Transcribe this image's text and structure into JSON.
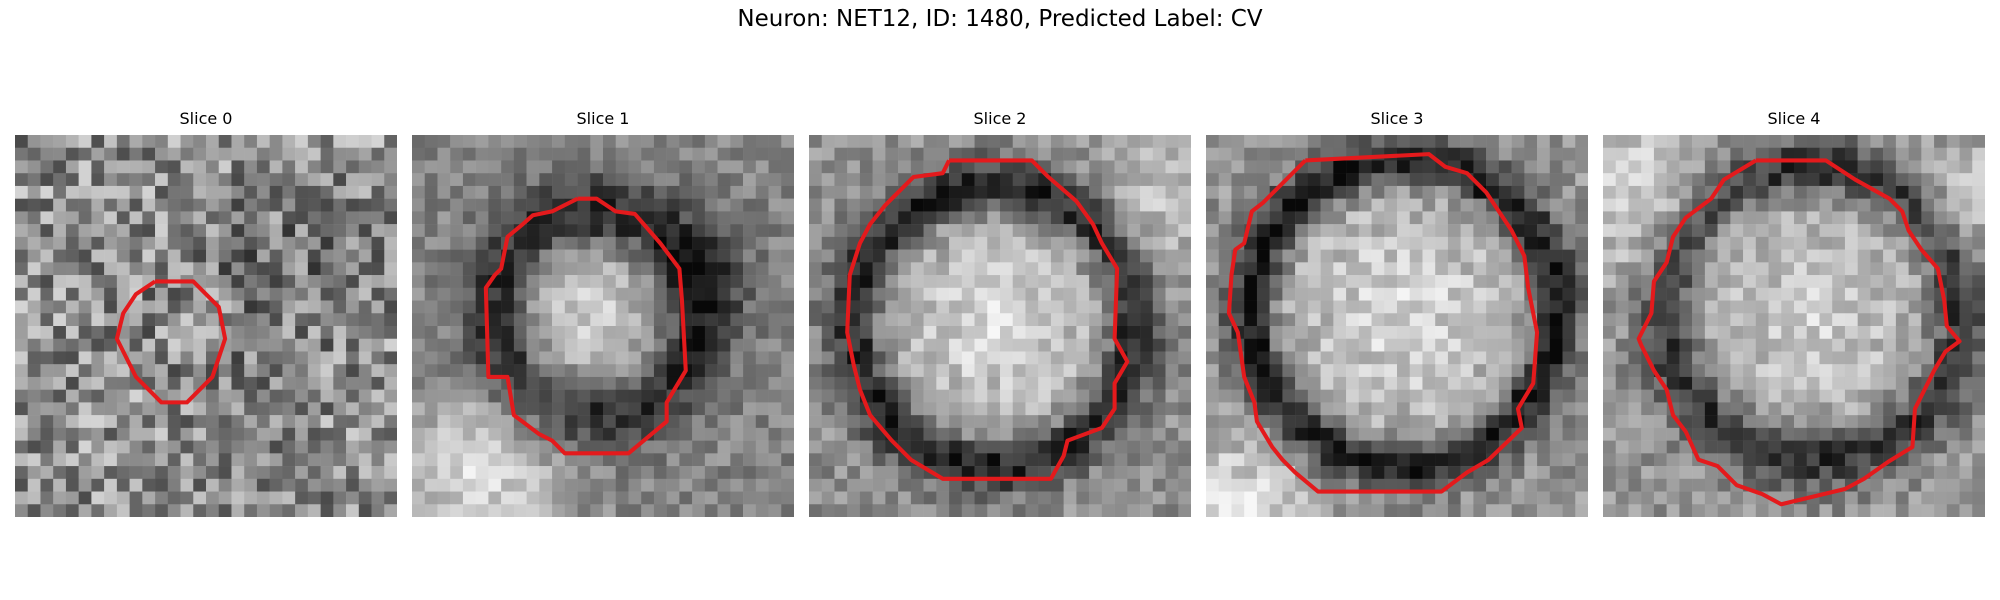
{
  "figure": {
    "title": "Neuron: NET12, ID: 1480, Predicted Label: CV"
  },
  "panels": [
    {
      "title": "Slice 0",
      "image": "noisy grayscale microscopy patch with small red octagonal outline",
      "contour_color": "#e41a1c"
    },
    {
      "title": "Slice 1",
      "image": "grayscale microscopy patch with bright cell body and red outline",
      "contour_color": "#e41a1c"
    },
    {
      "title": "Slice 2",
      "image": "grayscale microscopy patch with cell and dark membrane ring, red outline",
      "contour_color": "#e41a1c"
    },
    {
      "title": "Slice 3",
      "image": "grayscale microscopy patch with large cell and dark membrane ring, red outline",
      "contour_color": "#e41a1c"
    },
    {
      "title": "Slice 4",
      "image": "grayscale microscopy patch with large cell, red outline",
      "contour_color": "#e41a1c"
    }
  ]
}
